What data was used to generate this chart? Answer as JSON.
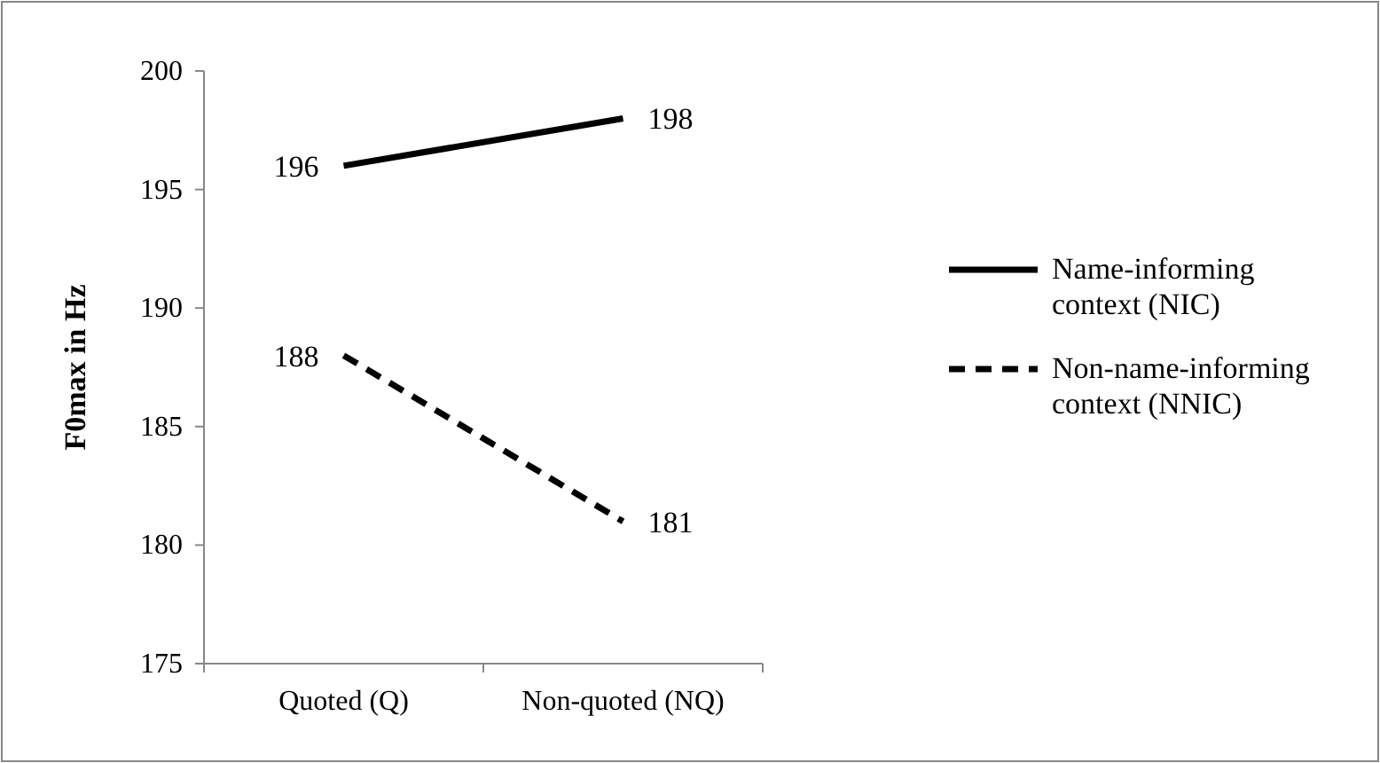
{
  "chart_data": {
    "type": "line",
    "ylabel": "F0max in Hz",
    "categories": [
      "Quoted (Q)",
      "Non-quoted (NQ)"
    ],
    "series": [
      {
        "name": "Name-informing context (NIC)",
        "color": "#000000",
        "values": [
          196,
          198
        ],
        "line_style": "solid"
      },
      {
        "name": "Non-name-informing context (NNIC)",
        "color": "#000000",
        "values": [
          188,
          181
        ],
        "line_style": "dashed"
      }
    ],
    "ylim": [
      175,
      200
    ],
    "yticks": [
      175,
      180,
      185,
      190,
      195,
      200
    ],
    "data_labels": true,
    "legend": "right",
    "grid": false,
    "marker": "none"
  }
}
